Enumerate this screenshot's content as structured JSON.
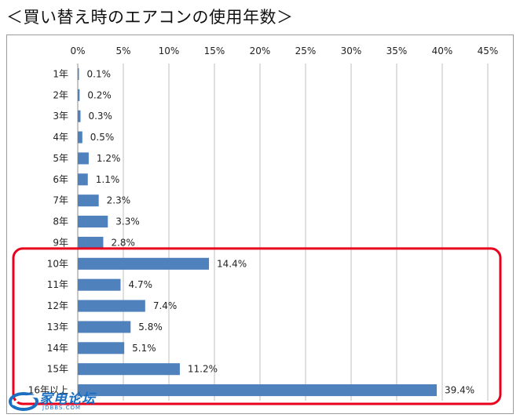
{
  "title": "＜買い替え時のエアコンの使用年数＞",
  "chart_data": {
    "type": "bar",
    "orientation": "horizontal",
    "categories": [
      "1年",
      "2年",
      "3年",
      "4年",
      "5年",
      "6年",
      "7年",
      "8年",
      "9年",
      "10年",
      "11年",
      "12年",
      "13年",
      "14年",
      "15年",
      "16年以上"
    ],
    "values": [
      0.1,
      0.2,
      0.3,
      0.5,
      1.2,
      1.1,
      2.3,
      3.3,
      2.8,
      14.4,
      4.7,
      7.4,
      5.8,
      5.1,
      11.2,
      39.4
    ],
    "data_labels": [
      "0.1%",
      "0.2%",
      "0.3%",
      "0.5%",
      "1.2%",
      "1.1%",
      "2.3%",
      "3.3%",
      "2.8%",
      "14.4%",
      "4.7%",
      "7.4%",
      "5.8%",
      "5.1%",
      "11.2%",
      "39.4%"
    ],
    "x_ticks": [
      "0%",
      "5%",
      "10%",
      "15%",
      "20%",
      "25%",
      "30%",
      "35%",
      "40%",
      "45%"
    ],
    "xlim": [
      0,
      45
    ],
    "x_axis_position": "top",
    "grid": true,
    "bar_color": "#4f81bd",
    "highlight": {
      "from_category": "10年",
      "to_category": "16年以上",
      "color": "#e8001c"
    }
  },
  "watermark": {
    "text": "家电论坛",
    "sub": "JDBBS.COM",
    "color": "#1a6fc2"
  }
}
